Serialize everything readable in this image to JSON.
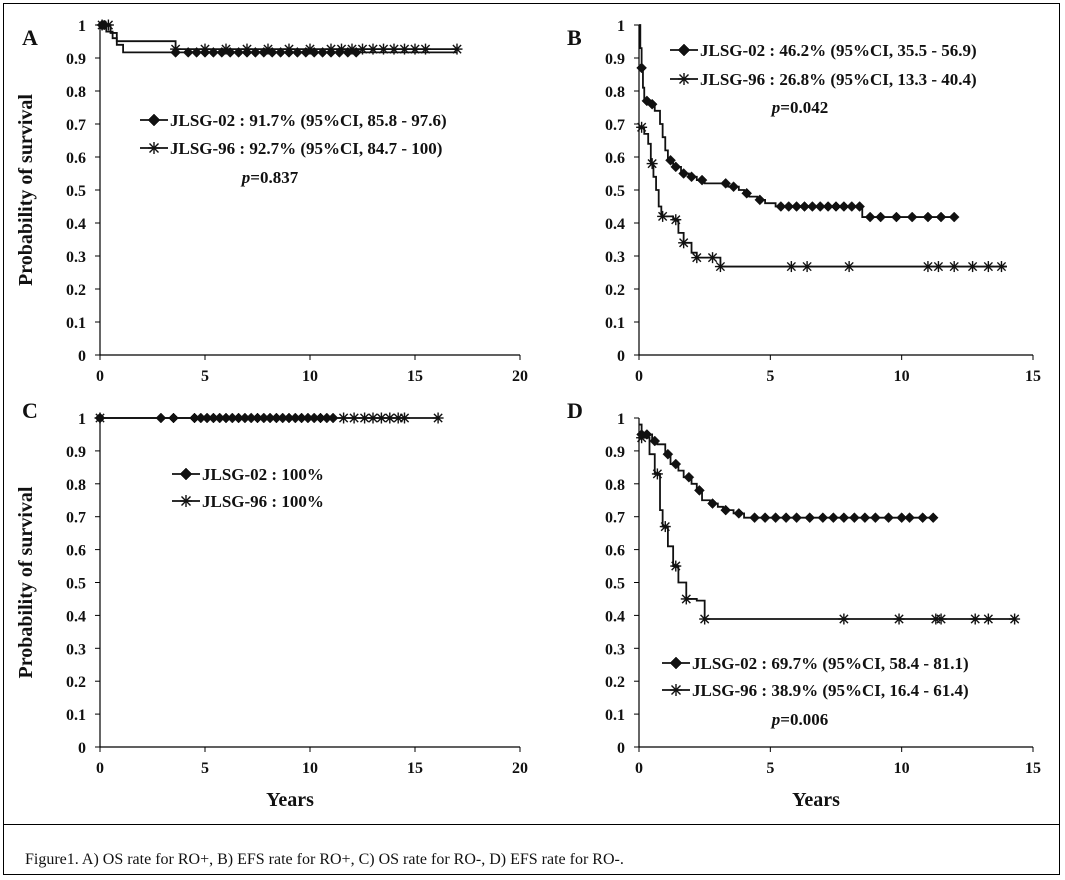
{
  "figure": {
    "caption": "Figure1. A) OS rate for RO+, B) EFS rate for RO+, C) OS rate for RO-, D) EFS rate for RO-.",
    "ylabel": "Probability of survival",
    "xlabel": "Years",
    "colors": {
      "line": "#111111",
      "frame": "#000000"
    }
  },
  "chart_data": [
    {
      "panel": "A",
      "type": "line",
      "xlim": [
        0,
        20
      ],
      "ylim": [
        0,
        1
      ],
      "xticks": [
        "0",
        "5",
        "10",
        "15",
        "20"
      ],
      "yticks": [
        "0",
        "0.1",
        "0.2",
        "0.3",
        "0.4",
        "0.5",
        "0.6",
        "0.7",
        "0.8",
        "0.9",
        "1"
      ],
      "legend": [
        {
          "text": "JLSG-02 : 91.7% (95%CI, 85.8 - 97.6)",
          "marker": "diamond"
        },
        {
          "text": "JLSG-96 : 92.7% (95%CI, 84.7 - 100)",
          "marker": "star"
        }
      ],
      "pvalue": {
        "p": "p",
        "rest": "=0.837"
      },
      "series": [
        {
          "name": "JLSG-02",
          "marker": "diamond",
          "steps": [
            [
              0,
              1
            ],
            [
              0.3,
              0.98
            ],
            [
              0.6,
              0.96
            ],
            [
              0.8,
              0.94
            ],
            [
              1.1,
              0.917
            ],
            [
              17,
              0.917
            ]
          ],
          "censors": [
            0.1,
            0.2,
            3.6,
            4.2,
            4.6,
            5.0,
            5.4,
            5.8,
            6.2,
            6.6,
            7.0,
            7.4,
            7.8,
            8.2,
            8.6,
            9.0,
            9.4,
            9.8,
            10.2,
            10.6,
            11.0,
            11.4,
            11.8,
            12.2
          ]
        },
        {
          "name": "JLSG-96",
          "marker": "star",
          "steps": [
            [
              0,
              1
            ],
            [
              0.5,
              0.976
            ],
            [
              0.8,
              0.951
            ],
            [
              3.6,
              0.927
            ],
            [
              17,
              0.927
            ]
          ],
          "censors": [
            0.1,
            0.4,
            3.6,
            5.0,
            6.0,
            7.0,
            8.0,
            9.0,
            10.0,
            11.0,
            11.5,
            12.0,
            12.5,
            13.0,
            13.5,
            14.0,
            14.5,
            15.0,
            15.5,
            17.0
          ]
        }
      ]
    },
    {
      "panel": "B",
      "type": "line",
      "xlim": [
        0,
        15
      ],
      "ylim": [
        0,
        1
      ],
      "xticks": [
        "0",
        "5",
        "10",
        "15"
      ],
      "yticks": [
        "0",
        "0.1",
        "0.2",
        "0.3",
        "0.4",
        "0.5",
        "0.6",
        "0.7",
        "0.8",
        "0.9",
        "1"
      ],
      "legend": [
        {
          "text": "JLSG-02 : 46.2% (95%CI, 35.5 - 56.9)",
          "marker": "diamond"
        },
        {
          "text": "JLSG-96 : 26.8% (95%CI, 13.3 - 40.4)",
          "marker": "star"
        }
      ],
      "pvalue": {
        "p": "p",
        "rest": "=0.042"
      },
      "series": [
        {
          "name": "JLSG-02",
          "marker": "diamond",
          "steps": [
            [
              0,
              1
            ],
            [
              0.05,
              0.93
            ],
            [
              0.1,
              0.87
            ],
            [
              0.15,
              0.81
            ],
            [
              0.2,
              0.77
            ],
            [
              0.4,
              0.76
            ],
            [
              0.6,
              0.74
            ],
            [
              0.8,
              0.7
            ],
            [
              0.9,
              0.66
            ],
            [
              1.0,
              0.62
            ],
            [
              1.1,
              0.59
            ],
            [
              1.3,
              0.57
            ],
            [
              1.6,
              0.55
            ],
            [
              1.9,
              0.54
            ],
            [
              2.2,
              0.53
            ],
            [
              2.5,
              0.52
            ],
            [
              3.4,
              0.51
            ],
            [
              3.8,
              0.5
            ],
            [
              4.0,
              0.49
            ],
            [
              4.2,
              0.48
            ],
            [
              4.5,
              0.47
            ],
            [
              4.8,
              0.46
            ],
            [
              5.2,
              0.45
            ],
            [
              8.4,
              0.45
            ],
            [
              8.5,
              0.418
            ],
            [
              12,
              0.418
            ]
          ],
          "censors": [
            0.1,
            0.3,
            0.5,
            1.2,
            1.4,
            1.7,
            2.0,
            2.4,
            3.3,
            3.6,
            4.1,
            4.6,
            5.4,
            5.7,
            6.0,
            6.3,
            6.6,
            6.9,
            7.2,
            7.5,
            7.8,
            8.1,
            8.4,
            8.8,
            9.2,
            9.8,
            10.4,
            11.0,
            11.5,
            12.0
          ]
        },
        {
          "name": "JLSG-96",
          "marker": "star",
          "steps": [
            [
              0,
              0.69
            ],
            [
              0.2,
              0.67
            ],
            [
              0.35,
              0.64
            ],
            [
              0.45,
              0.58
            ],
            [
              0.55,
              0.54
            ],
            [
              0.65,
              0.5
            ],
            [
              0.75,
              0.45
            ],
            [
              0.85,
              0.42
            ],
            [
              1.3,
              0.41
            ],
            [
              1.5,
              0.37
            ],
            [
              1.7,
              0.34
            ],
            [
              2.0,
              0.31
            ],
            [
              2.2,
              0.295
            ],
            [
              3.1,
              0.268
            ],
            [
              14,
              0.268
            ]
          ],
          "censors": [
            0.1,
            0.5,
            0.9,
            1.4,
            1.7,
            2.2,
            2.8,
            3.1,
            5.8,
            6.4,
            8.0,
            11.0,
            11.4,
            12.0,
            12.7,
            13.3,
            13.8
          ]
        }
      ]
    },
    {
      "panel": "C",
      "type": "line",
      "xlim": [
        0,
        20
      ],
      "ylim": [
        0,
        1
      ],
      "xticks": [
        "0",
        "5",
        "10",
        "15",
        "20"
      ],
      "yticks": [
        "0",
        "0.1",
        "0.2",
        "0.3",
        "0.4",
        "0.5",
        "0.6",
        "0.7",
        "0.8",
        "0.9",
        "1"
      ],
      "legend": [
        {
          "text": "JLSG-02 : 100%",
          "marker": "diamond"
        },
        {
          "text": "JLSG-96 : 100%",
          "marker": "star"
        }
      ],
      "pvalue": null,
      "series": [
        {
          "name": "JLSG-02",
          "marker": "diamond",
          "steps": [
            [
              0,
              1
            ],
            [
              11.2,
              1
            ]
          ],
          "censors": [
            0,
            2.9,
            3.5,
            4.5,
            4.8,
            5.1,
            5.4,
            5.7,
            6.0,
            6.3,
            6.6,
            6.9,
            7.2,
            7.5,
            7.8,
            8.1,
            8.4,
            8.7,
            9.0,
            9.3,
            9.6,
            9.9,
            10.2,
            10.5,
            10.8,
            11.1
          ]
        },
        {
          "name": "JLSG-96",
          "marker": "star",
          "steps": [
            [
              0,
              1
            ],
            [
              16.1,
              1
            ]
          ],
          "censors": [
            0,
            11.6,
            12.1,
            12.6,
            13.0,
            13.4,
            13.8,
            14.2,
            14.5,
            16.1
          ]
        }
      ]
    },
    {
      "panel": "D",
      "type": "line",
      "xlim": [
        0,
        15
      ],
      "ylim": [
        0,
        1
      ],
      "xticks": [
        "0",
        "5",
        "10",
        "15"
      ],
      "yticks": [
        "0",
        "0.1",
        "0.2",
        "0.3",
        "0.4",
        "0.5",
        "0.6",
        "0.7",
        "0.8",
        "0.9",
        "1"
      ],
      "legend": [
        {
          "text": "JLSG-02 : 69.7% (95%CI, 58.4 - 81.1)",
          "marker": "diamond"
        },
        {
          "text": "JLSG-96 : 38.9% (95%CI, 16.4 - 61.4)",
          "marker": "star"
        }
      ],
      "pvalue": {
        "p": "p",
        "rest": "=0.006"
      },
      "series": [
        {
          "name": "JLSG-02",
          "marker": "diamond",
          "steps": [
            [
              0,
              0.98
            ],
            [
              0.1,
              0.95
            ],
            [
              0.5,
              0.93
            ],
            [
              0.7,
              0.92
            ],
            [
              1.0,
              0.89
            ],
            [
              1.2,
              0.86
            ],
            [
              1.5,
              0.84
            ],
            [
              1.7,
              0.82
            ],
            [
              2.0,
              0.8
            ],
            [
              2.2,
              0.78
            ],
            [
              2.4,
              0.75
            ],
            [
              2.7,
              0.74
            ],
            [
              3.0,
              0.73
            ],
            [
              3.2,
              0.72
            ],
            [
              3.6,
              0.71
            ],
            [
              4.0,
              0.697
            ],
            [
              11.3,
              0.697
            ]
          ],
          "censors": [
            0.1,
            0.3,
            0.6,
            1.1,
            1.4,
            1.9,
            2.3,
            2.8,
            3.3,
            3.8,
            4.4,
            4.8,
            5.2,
            5.6,
            6.0,
            6.5,
            7.0,
            7.4,
            7.8,
            8.2,
            8.6,
            9.0,
            9.5,
            10.0,
            10.3,
            10.8,
            11.2
          ]
        },
        {
          "name": "JLSG-96",
          "marker": "star",
          "steps": [
            [
              0,
              0.94
            ],
            [
              0.4,
              0.89
            ],
            [
              0.6,
              0.83
            ],
            [
              0.8,
              0.72
            ],
            [
              0.9,
              0.67
            ],
            [
              1.1,
              0.61
            ],
            [
              1.3,
              0.55
            ],
            [
              1.5,
              0.5
            ],
            [
              1.8,
              0.45
            ],
            [
              2.2,
              0.445
            ],
            [
              2.5,
              0.389
            ],
            [
              14.3,
              0.389
            ]
          ],
          "censors": [
            0.1,
            0.7,
            1.0,
            1.4,
            1.8,
            2.5,
            7.8,
            9.9,
            11.3,
            11.5,
            12.8,
            13.3,
            14.3
          ]
        }
      ]
    }
  ]
}
